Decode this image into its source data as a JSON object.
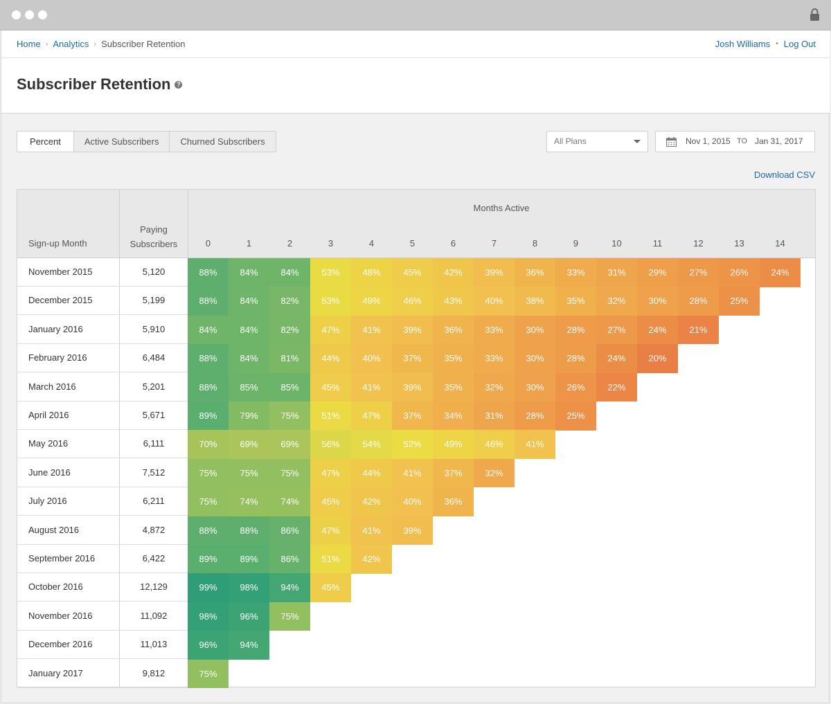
{
  "window": {
    "dots": [
      "close",
      "minimize",
      "zoom"
    ],
    "lock_icon": "lock-icon"
  },
  "breadcrumb": {
    "items": [
      {
        "label": "Home",
        "link": true
      },
      {
        "label": "Analytics",
        "link": true
      },
      {
        "label": "Subscriber Retention",
        "link": false
      }
    ],
    "separator": "›"
  },
  "user": {
    "name": "Josh Williams",
    "separator": "•",
    "logout_label": "Log Out"
  },
  "page": {
    "title": "Subscriber Retention",
    "help_glyph": "?"
  },
  "tabs": [
    {
      "label": "Percent",
      "active": true
    },
    {
      "label": "Active Subscribers",
      "active": false
    },
    {
      "label": "Churned Subscribers",
      "active": false
    }
  ],
  "filters": {
    "plan_selected": "All Plans",
    "date_from": "Nov 1, 2015",
    "date_to_label": "TO",
    "date_to": "Jan 31, 2017"
  },
  "download_csv_label": "Download CSV",
  "colors": {
    "link": "#1c6aa4",
    "scale_high": "#2f9e78",
    "scale_mid": "#e9d93e",
    "scale_low": "#ea7f45"
  },
  "table": {
    "col_signup": "Sign-up Month",
    "col_paying": "Paying Subscribers",
    "col_months": "Months Active",
    "month_numbers": [
      "0",
      "1",
      "2",
      "3",
      "4",
      "5",
      "6",
      "7",
      "8",
      "9",
      "10",
      "11",
      "12",
      "13",
      "14"
    ],
    "rows": [
      {
        "month": "November 2015",
        "paying": "5,120",
        "values": [
          88,
          84,
          84,
          53,
          48,
          45,
          42,
          39,
          36,
          33,
          31,
          29,
          27,
          26,
          24
        ]
      },
      {
        "month": "December 2015",
        "paying": "5,199",
        "values": [
          88,
          84,
          82,
          53,
          49,
          46,
          43,
          40,
          38,
          35,
          32,
          30,
          28,
          25
        ]
      },
      {
        "month": "January 2016",
        "paying": "5,910",
        "values": [
          84,
          84,
          82,
          47,
          41,
          39,
          36,
          33,
          30,
          28,
          27,
          24,
          21
        ]
      },
      {
        "month": "February 2016",
        "paying": "6,484",
        "values": [
          88,
          84,
          81,
          44,
          40,
          37,
          35,
          33,
          30,
          28,
          24,
          20
        ]
      },
      {
        "month": "March 2016",
        "paying": "5,201",
        "values": [
          88,
          85,
          85,
          45,
          41,
          39,
          35,
          32,
          30,
          26,
          22
        ]
      },
      {
        "month": "April 2016",
        "paying": "5,671",
        "values": [
          89,
          79,
          75,
          51,
          47,
          37,
          34,
          31,
          28,
          25
        ]
      },
      {
        "month": "May 2016",
        "paying": "6,111",
        "values": [
          70,
          69,
          69,
          56,
          54,
          52,
          49,
          46,
          41
        ]
      },
      {
        "month": "June 2016",
        "paying": "7,512",
        "values": [
          75,
          75,
          75,
          47,
          44,
          41,
          37,
          32
        ]
      },
      {
        "month": "July 2016",
        "paying": "6,211",
        "values": [
          75,
          74,
          74,
          45,
          42,
          40,
          36
        ]
      },
      {
        "month": "August 2016",
        "paying": "4,872",
        "values": [
          88,
          88,
          86,
          47,
          41,
          39
        ]
      },
      {
        "month": "September 2016",
        "paying": "6,422",
        "values": [
          89,
          89,
          86,
          51,
          42
        ]
      },
      {
        "month": "October 2016",
        "paying": "12,129",
        "values": [
          99,
          98,
          94,
          45
        ]
      },
      {
        "month": "November 2016",
        "paying": "11,092",
        "values": [
          98,
          96,
          75
        ]
      },
      {
        "month": "December 2016",
        "paying": "11,013",
        "values": [
          96,
          94
        ]
      },
      {
        "month": "January 2017",
        "paying": "9,812",
        "values": [
          75
        ]
      }
    ]
  }
}
